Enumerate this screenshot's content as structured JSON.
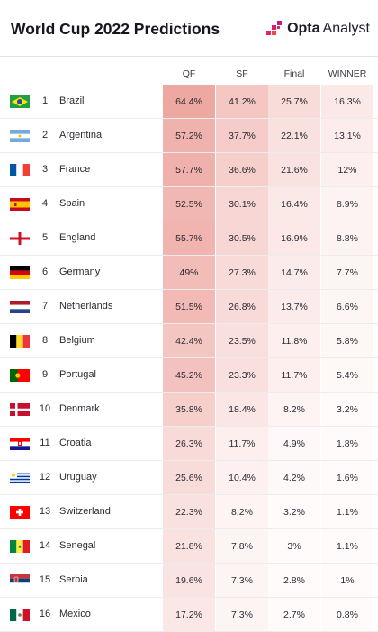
{
  "header": {
    "title": "World Cup 2022 Predictions",
    "brand_name": "Opta",
    "brand_sub": "Analyst"
  },
  "chart_data": {
    "type": "table",
    "title": "World Cup 2022 Predictions",
    "columns": [
      "QF",
      "SF",
      "Final",
      "WINNER"
    ],
    "rows": [
      {
        "rank": "1",
        "team": "Brazil",
        "flag": "brazil-flag",
        "values": [
          "64.4%",
          "41.2%",
          "25.7%",
          "16.3%"
        ]
      },
      {
        "rank": "2",
        "team": "Argentina",
        "flag": "argentina-flag",
        "values": [
          "57.2%",
          "37.7%",
          "22.1%",
          "13.1%"
        ]
      },
      {
        "rank": "3",
        "team": "France",
        "flag": "france-flag",
        "values": [
          "57.7%",
          "36.6%",
          "21.6%",
          "12%"
        ]
      },
      {
        "rank": "4",
        "team": "Spain",
        "flag": "spain-flag",
        "values": [
          "52.5%",
          "30.1%",
          "16.4%",
          "8.9%"
        ]
      },
      {
        "rank": "5",
        "team": "England",
        "flag": "england-flag",
        "values": [
          "55.7%",
          "30.5%",
          "16.9%",
          "8.8%"
        ]
      },
      {
        "rank": "6",
        "team": "Germany",
        "flag": "germany-flag",
        "values": [
          "49%",
          "27.3%",
          "14.7%",
          "7.7%"
        ]
      },
      {
        "rank": "7",
        "team": "Netherlands",
        "flag": "netherlands-flag",
        "values": [
          "51.5%",
          "26.8%",
          "13.7%",
          "6.6%"
        ]
      },
      {
        "rank": "8",
        "team": "Belgium",
        "flag": "belgium-flag",
        "values": [
          "42.4%",
          "23.5%",
          "11.8%",
          "5.8%"
        ]
      },
      {
        "rank": "9",
        "team": "Portugal",
        "flag": "portugal-flag",
        "values": [
          "45.2%",
          "23.3%",
          "11.7%",
          "5.4%"
        ]
      },
      {
        "rank": "10",
        "team": "Denmark",
        "flag": "denmark-flag",
        "values": [
          "35.8%",
          "18.4%",
          "8.2%",
          "3.2%"
        ]
      },
      {
        "rank": "11",
        "team": "Croatia",
        "flag": "croatia-flag",
        "values": [
          "26.3%",
          "11.7%",
          "4.9%",
          "1.8%"
        ]
      },
      {
        "rank": "12",
        "team": "Uruguay",
        "flag": "uruguay-flag",
        "values": [
          "25.6%",
          "10.4%",
          "4.2%",
          "1.6%"
        ]
      },
      {
        "rank": "13",
        "team": "Switzerland",
        "flag": "switzerland-flag",
        "values": [
          "22.3%",
          "8.2%",
          "3.2%",
          "1.1%"
        ]
      },
      {
        "rank": "14",
        "team": "Senegal",
        "flag": "senegal-flag",
        "values": [
          "21.8%",
          "7.8%",
          "3%",
          "1.1%"
        ]
      },
      {
        "rank": "15",
        "team": "Serbia",
        "flag": "serbia-flag",
        "values": [
          "19.6%",
          "7.3%",
          "2.8%",
          "1%"
        ]
      },
      {
        "rank": "16",
        "team": "Mexico",
        "flag": "mexico-flag",
        "values": [
          "17.2%",
          "7.3%",
          "2.7%",
          "0.8%"
        ]
      }
    ],
    "heat_color": "#e8867e",
    "grid": false,
    "legend": "none"
  }
}
